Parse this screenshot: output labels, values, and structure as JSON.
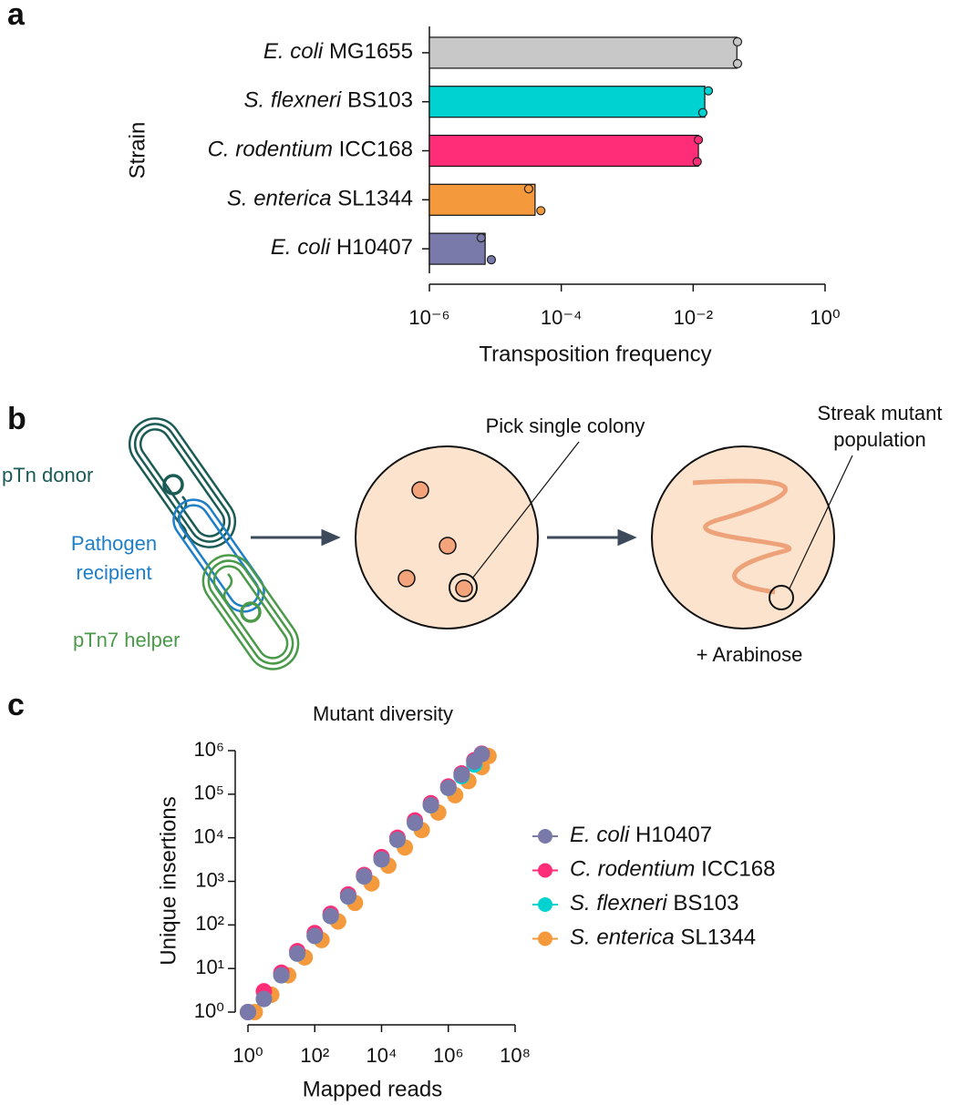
{
  "panel_labels": [
    "a",
    "b",
    "c"
  ],
  "chart_data": [
    {
      "type": "hbar",
      "ylabel": "Strain",
      "xlabel": "Transposition frequency",
      "xscale": "log",
      "categories": [
        "E. coli MG1655",
        "S. flexneri BS103",
        "C. rodentium ICC168",
        "S. enterica SL1344",
        "E. coli H10407"
      ],
      "values": [
        0.046,
        0.015,
        0.012,
        4e-05,
        7e-06
      ],
      "replicates": [
        [
          0.047,
          0.047
        ],
        [
          0.017,
          0.014
        ],
        [
          0.012,
          0.0115
        ],
        [
          3.2e-05,
          4.9e-05
        ],
        [
          6.1e-06,
          8.7e-06
        ]
      ],
      "colors": [
        "#c8c8c8",
        "#00d2d2",
        "#ff2d78",
        "#f59a3c",
        "#7a7aaa"
      ],
      "xlim": [
        1e-06,
        1
      ],
      "xticks": [
        {
          "value": 1e-06,
          "label": "10⁻⁶"
        },
        {
          "value": 0.0001,
          "label": "10⁻⁴"
        },
        {
          "value": 0.01,
          "label": "10⁻²"
        },
        {
          "value": 1,
          "label": "10⁰"
        }
      ]
    },
    {
      "type": "scatter",
      "title": "Mutant diversity",
      "xlabel": "Mapped reads",
      "ylabel": "Unique insertions",
      "xscale": "log",
      "yscale": "log",
      "legend": "right",
      "series": [
        {
          "name": "E. coli H10407",
          "color": "#7a7aaa",
          "x": [
            1,
            3,
            10,
            30,
            100,
            300,
            1000,
            3000,
            10000,
            30000,
            100000,
            300000,
            1000000,
            2500000,
            6000000,
            10000000
          ],
          "values": [
            1,
            2,
            7,
            22,
            56,
            160,
            450,
            1300,
            3200,
            9000,
            22000,
            56000,
            140000,
            280000,
            560000,
            830000
          ]
        },
        {
          "name": "C. rodentium ICC168",
          "color": "#ff2d78",
          "x": [
            1,
            3,
            10,
            30,
            100,
            300,
            1000,
            3000,
            10000,
            30000,
            100000,
            300000,
            1000000,
            2500000,
            6000000,
            10000000
          ],
          "values": [
            1,
            3,
            8,
            25,
            65,
            180,
            500,
            1400,
            3600,
            10000,
            25000,
            62000,
            150000,
            300000,
            600000,
            850000
          ]
        },
        {
          "name": "S. flexneri BS103",
          "color": "#00d2d2",
          "x": [
            1,
            3,
            10,
            30,
            100,
            300,
            1000,
            3000,
            10000,
            30000,
            100000,
            300000,
            1000000,
            2500000,
            6000000
          ],
          "values": [
            1,
            2,
            7,
            22,
            56,
            160,
            450,
            1300,
            3200,
            9000,
            22000,
            56000,
            140000,
            260000,
            480000
          ]
        },
        {
          "name": "S. enterica SL1344",
          "color": "#f59a3c",
          "x": [
            1.6,
            5,
            16,
            50,
            160,
            500,
            1600,
            5000,
            16000,
            50000,
            160000,
            500000,
            1600000,
            4000000,
            10000000,
            16000000
          ],
          "values": [
            1,
            2.5,
            7,
            18,
            45,
            120,
            320,
            900,
            2300,
            6000,
            15000,
            38000,
            95000,
            200000,
            420000,
            750000
          ]
        }
      ],
      "xlim": [
        1,
        100000000
      ],
      "xticks": [
        {
          "value": 1,
          "label": "10⁰"
        },
        {
          "value": 100,
          "label": "10²"
        },
        {
          "value": 10000,
          "label": "10⁴"
        },
        {
          "value": 1000000,
          "label": "10⁶"
        },
        {
          "value": 100000000,
          "label": "10⁸"
        }
      ],
      "ylim": [
        1,
        1000000
      ],
      "yticks": [
        {
          "value": 1,
          "label": "10⁰"
        },
        {
          "value": 10,
          "label": "10¹"
        },
        {
          "value": 100,
          "label": "10²"
        },
        {
          "value": 1000,
          "label": "10³"
        },
        {
          "value": 10000,
          "label": "10⁴"
        },
        {
          "value": 100000,
          "label": "10⁵"
        },
        {
          "value": 1000000,
          "label": "10⁶"
        }
      ]
    }
  ],
  "diagram": {
    "donor": "pTn donor",
    "recipient": [
      "Pathogen",
      "recipient"
    ],
    "helper": "pTn7 helper",
    "pick": "Pick single colony",
    "streak": [
      "Streak mutant",
      "population"
    ],
    "arabinose": "+ Arabinose"
  }
}
